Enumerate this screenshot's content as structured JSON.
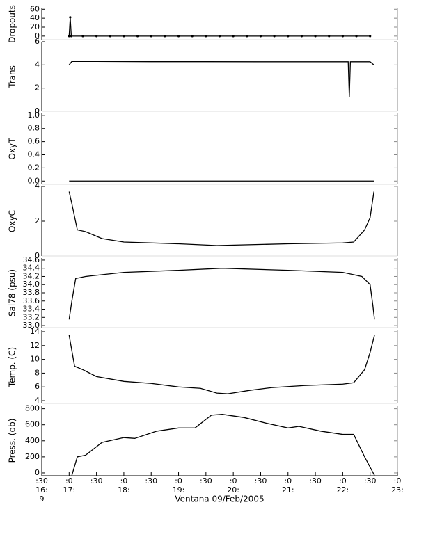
{
  "chart_data": [
    {
      "type": "line",
      "ylabel": "Dropouts",
      "ylim": [
        -8,
        62
      ],
      "yticks": [
        0,
        20,
        40,
        60
      ],
      "markers": true,
      "color": "#000000",
      "x": [
        17.0,
        17.02,
        17.04,
        17.25,
        17.5,
        17.75,
        18.0,
        18.25,
        18.5,
        18.75,
        19.0,
        19.25,
        19.5,
        19.75,
        20.0,
        20.25,
        20.5,
        20.75,
        21.0,
        21.25,
        21.5,
        21.75,
        22.0,
        22.25,
        22.5
      ],
      "values": [
        0,
        42,
        0,
        0,
        0,
        0,
        0,
        0,
        0,
        0,
        0,
        0,
        0,
        0,
        0,
        0,
        0,
        0,
        0,
        0,
        0,
        0,
        0,
        0,
        0
      ]
    },
    {
      "type": "line",
      "ylabel": "Trans",
      "ylim": [
        0,
        6
      ],
      "yticks": [
        0,
        2,
        4,
        6
      ],
      "color": "#000000",
      "x": [
        17.0,
        17.05,
        17.5,
        18.5,
        19.5,
        20.5,
        21.5,
        22.1,
        22.12,
        22.14,
        22.5,
        22.57
      ],
      "values": [
        4.0,
        4.3,
        4.3,
        4.28,
        4.28,
        4.27,
        4.27,
        4.27,
        1.2,
        4.27,
        4.27,
        4.0
      ]
    },
    {
      "type": "line",
      "ylabel": "OxyT",
      "ylim": [
        -0.05,
        1.03
      ],
      "yticks": [
        {
          "value": 0,
          "label": "0.0"
        },
        0.2,
        0.4,
        0.6,
        0.8,
        {
          "value": 1,
          "label": "1.0"
        }
      ],
      "color": "#000000",
      "x": [
        17.0,
        18.0,
        19.0,
        20.0,
        21.0,
        22.0,
        22.57
      ],
      "values": [
        0,
        0,
        0,
        0,
        0,
        0,
        0
      ]
    },
    {
      "type": "line",
      "ylabel": "OxyC",
      "ylim": [
        0,
        4
      ],
      "yticks": [
        0,
        2,
        4
      ],
      "color": "#000000",
      "x": [
        17.0,
        17.05,
        17.15,
        17.3,
        17.6,
        18.0,
        19.0,
        19.7,
        21.0,
        22.0,
        22.2,
        22.4,
        22.5,
        22.57
      ],
      "values": [
        3.7,
        3.0,
        1.5,
        1.4,
        1.0,
        0.8,
        0.7,
        0.6,
        0.7,
        0.75,
        0.8,
        1.5,
        2.2,
        3.7
      ]
    },
    {
      "type": "line",
      "ylabel": "Sal78 (psu)",
      "ylim": [
        32.95,
        34.65
      ],
      "yticks": [
        {
          "value": 33,
          "label": "33.0"
        },
        33.2,
        33.4,
        33.6,
        33.8,
        {
          "value": 34,
          "label": "34.0"
        },
        34.2,
        34.4,
        34.6
      ],
      "color": "#000000",
      "x": [
        17.0,
        17.05,
        17.12,
        17.3,
        18.0,
        19.0,
        19.8,
        21.0,
        22.0,
        22.35,
        22.5,
        22.55,
        22.58
      ],
      "values": [
        33.15,
        33.6,
        34.15,
        34.2,
        34.3,
        34.35,
        34.4,
        34.35,
        34.3,
        34.2,
        34.0,
        33.5,
        33.15
      ]
    },
    {
      "type": "line",
      "ylabel": "Temp. (C)",
      "ylim": [
        3.6,
        14.2
      ],
      "yticks": [
        4,
        6,
        8,
        10,
        12,
        14
      ],
      "color": "#000000",
      "x": [
        17.0,
        17.1,
        17.25,
        17.5,
        18.0,
        18.5,
        19.0,
        19.4,
        19.7,
        19.9,
        20.3,
        20.7,
        21.3,
        22.0,
        22.2,
        22.4,
        22.5,
        22.58
      ],
      "values": [
        13.5,
        9,
        8.5,
        7.5,
        6.8,
        6.5,
        6,
        5.8,
        5.1,
        5.0,
        5.5,
        5.9,
        6.2,
        6.4,
        6.6,
        8.5,
        11,
        13.5
      ]
    },
    {
      "type": "line",
      "ylabel": "Press. (db)",
      "ylim": [
        -35,
        840
      ],
      "yticks": [
        0,
        200,
        400,
        600,
        800
      ],
      "color": "#000000",
      "x": [
        17.05,
        17.15,
        17.3,
        17.6,
        18.0,
        18.2,
        18.6,
        19.0,
        19.3,
        19.6,
        19.8,
        20.2,
        20.6,
        21.0,
        21.2,
        21.6,
        22.0,
        22.2,
        22.4,
        22.58
      ],
      "values": [
        -30,
        200,
        220,
        380,
        440,
        430,
        520,
        560,
        560,
        720,
        730,
        690,
        620,
        560,
        580,
        520,
        480,
        480,
        200,
        -30
      ],
      "xlim": [
        16.5,
        23
      ],
      "xticks": [
        {
          "value": 16.5,
          "label": [
            ":30",
            "16:",
            "9"
          ]
        },
        {
          "value": 17,
          "label": [
            ":0",
            "17:"
          ]
        },
        {
          "value": 17.5,
          "label": [
            ":30"
          ]
        },
        {
          "value": 18,
          "label": [
            ":0",
            "18:"
          ]
        },
        {
          "value": 18.5,
          "label": [
            ":30"
          ]
        },
        {
          "value": 19,
          "label": [
            ":0",
            "19:"
          ]
        },
        {
          "value": 19.5,
          "label": [
            ":30"
          ]
        },
        {
          "value": 20,
          "label": [
            ":0",
            "20:"
          ]
        },
        {
          "value": 20.5,
          "label": [
            ":30"
          ]
        },
        {
          "value": 21,
          "label": [
            ":0",
            "21:"
          ]
        },
        {
          "value": 21.5,
          "label": [
            ":30"
          ]
        },
        {
          "value": 22,
          "label": [
            ":0",
            "22:"
          ]
        },
        {
          "value": 22.5,
          "label": [
            ":30"
          ]
        },
        {
          "value": 23,
          "label": [
            ":0",
            "23:"
          ]
        }
      ],
      "xlabel": "Ventana 09/Feb/2005"
    }
  ]
}
